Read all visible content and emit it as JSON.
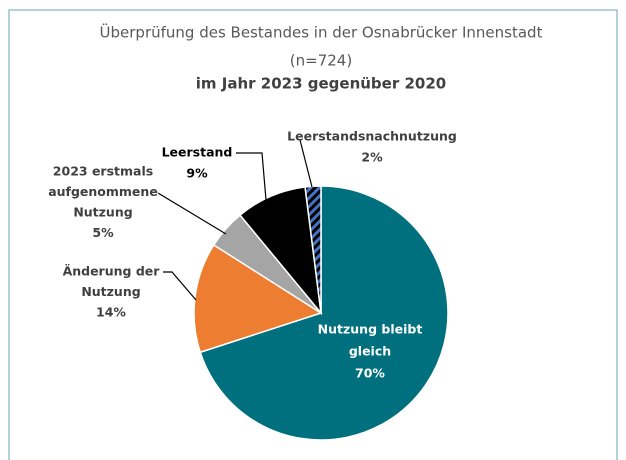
{
  "chart_data": {
    "type": "pie",
    "title": "Überprüfung des Bestandes in der Osnabrücker Innenstadt",
    "subtitle": "(n=724)",
    "subtitle2": "im Jahr 2023 gegenüber 2020",
    "categories": [
      [
        "Nutzung bleibt",
        "gleich"
      ],
      [
        "Änderung der",
        "Nutzung"
      ],
      [
        "2023 erstmals",
        "aufgenommene",
        "Nutzung"
      ],
      [
        "Leerstand"
      ],
      [
        "Leerstandsnachnutzung"
      ]
    ],
    "values": [
      70,
      14,
      5,
      9,
      2
    ],
    "value_labels": [
      "70%",
      "14%",
      "5%",
      "9%",
      "2%"
    ],
    "colors": [
      "#00707f",
      "#ed7d31",
      "#a5a5a5",
      "#000000",
      "#4472c4"
    ],
    "hatch": [
      false,
      false,
      false,
      false,
      true
    ]
  }
}
